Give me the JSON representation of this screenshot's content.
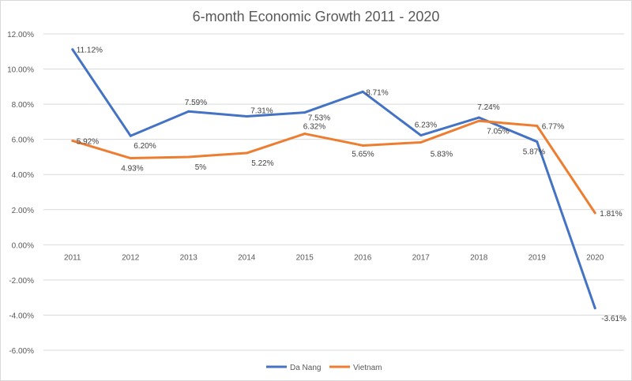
{
  "chart_data": {
    "type": "line",
    "title": "6-month Economic Growth 2011 - 2020",
    "xlabel": "",
    "ylabel": "",
    "categories": [
      "2011",
      "2012",
      "2013",
      "2014",
      "2015",
      "2016",
      "2017",
      "2018",
      "2019",
      "2020"
    ],
    "ylim": [
      -6,
      12
    ],
    "yticks": [
      12,
      10,
      8,
      6,
      4,
      2,
      0,
      -2,
      -4,
      -6
    ],
    "ytick_labels": [
      "12.00%",
      "10.00%",
      "8.00%",
      "6.00%",
      "4.00%",
      "2.00%",
      "0.00%",
      "-2.00%",
      "-4.00%",
      "-6.00%"
    ],
    "grid": true,
    "legend_position": "bottom",
    "series": [
      {
        "name": "Da Nang",
        "color": "#4472c4",
        "values": [
          11.12,
          6.2,
          7.59,
          7.31,
          7.53,
          8.71,
          6.23,
          7.24,
          5.87,
          -3.61
        ],
        "labels": [
          "11.12%",
          "6.20%",
          "7.59%",
          "7.31%",
          "7.53%",
          "8.71%",
          "6.23%",
          "7.24%",
          "5.87%",
          "-3.61%"
        ]
      },
      {
        "name": "Vietnam",
        "color": "#ed7d31",
        "values": [
          5.92,
          4.93,
          5,
          5.22,
          6.32,
          5.65,
          5.83,
          7.05,
          6.77,
          1.81
        ],
        "labels": [
          "5.92%",
          "4.93%",
          "5%",
          "5.22%",
          "6.32%",
          "5.65%",
          "5.83%",
          "7.05%",
          "6.77%",
          "1.81%"
        ]
      }
    ]
  }
}
